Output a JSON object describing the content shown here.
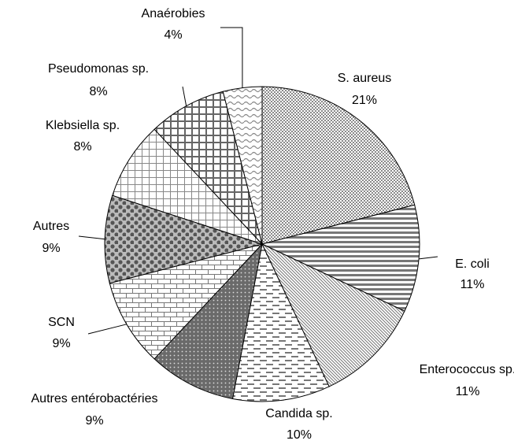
{
  "chart_data": {
    "type": "pie",
    "categories": [
      "S. aureus",
      "E. coli",
      "Enterococcus sp.",
      "Candida sp.",
      "Autres entérobactéries",
      "SCN",
      "Autres",
      "Klebsiella sp.",
      "Pseudomonas sp.",
      "Anaérobies"
    ],
    "values": [
      21,
      11,
      11,
      10,
      9,
      9,
      9,
      8,
      8,
      4
    ],
    "value_labels": [
      "21%",
      "11%",
      "11%",
      "10%",
      "9%",
      "9%",
      "9%",
      "8%",
      "8%",
      "4%"
    ]
  }
}
